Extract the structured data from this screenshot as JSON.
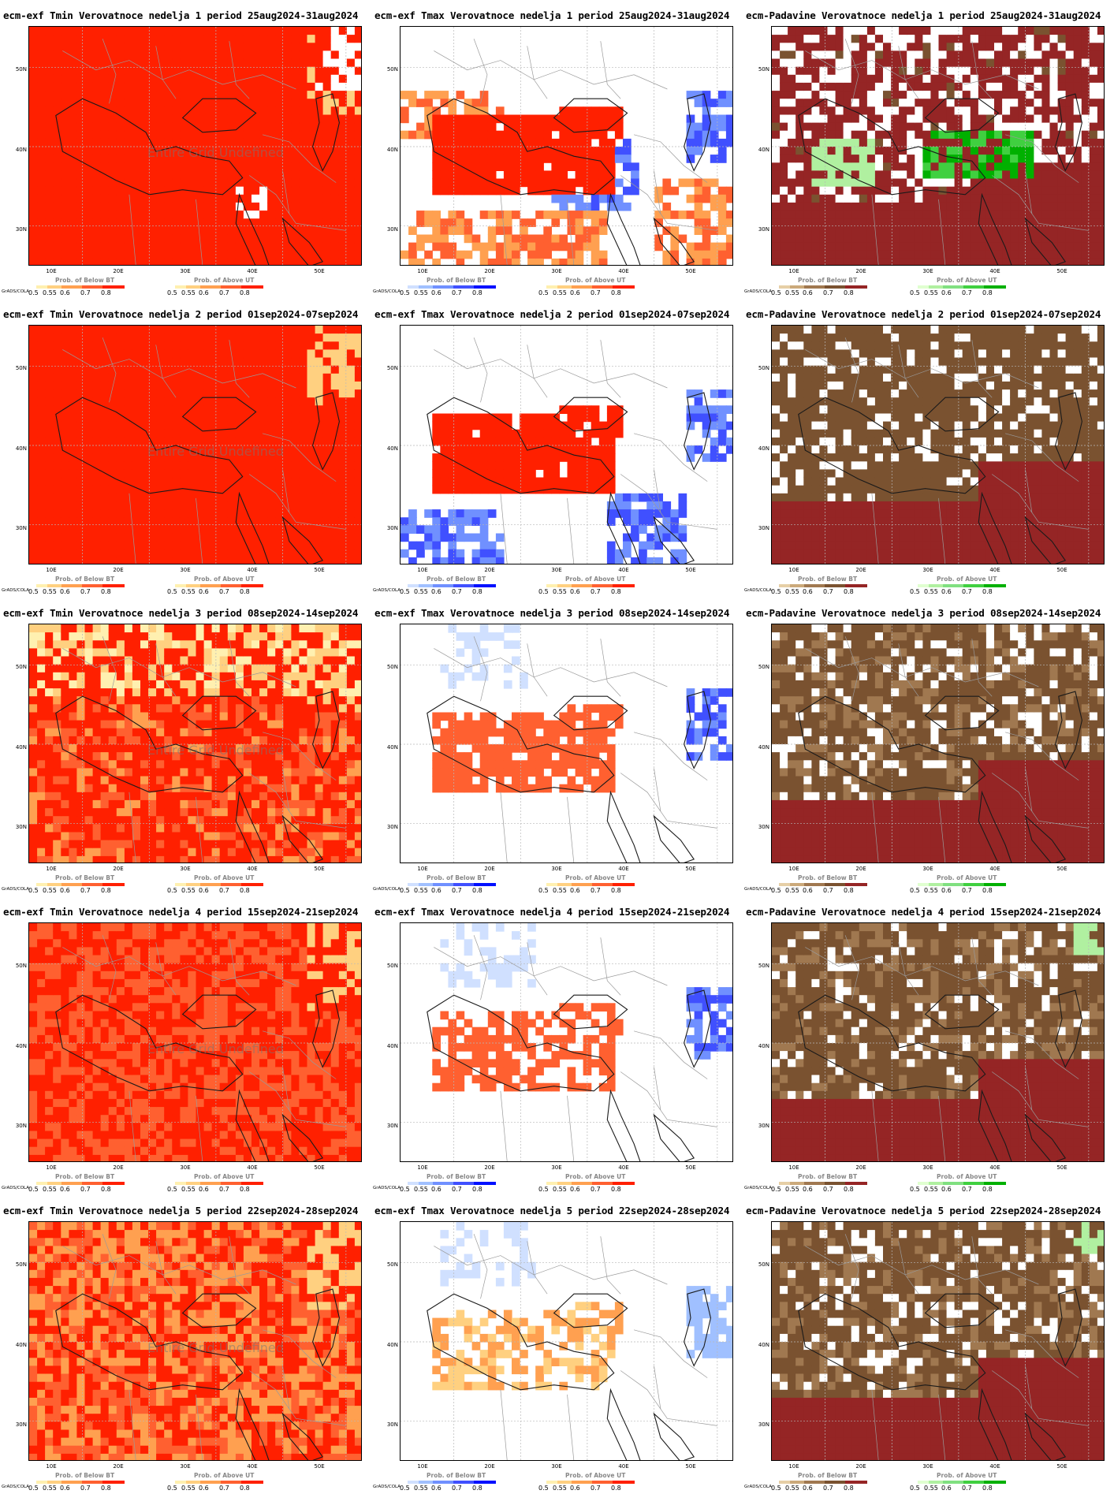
{
  "footer_credit": "GrADS/COLA",
  "overlay_text": "Entire Grid Undefined",
  "lat_labels": [
    "50N",
    "40N",
    "30N"
  ],
  "lon_labels": [
    "10E",
    "20E",
    "30E",
    "40E",
    "50E"
  ],
  "colorbars": {
    "below_label": "Prob. of Below BT",
    "above_label": "Prob. of Above UT",
    "ticks_a": [
      "0.5",
      "0.55",
      "0.6",
      "0.7",
      "0.8"
    ],
    "ticks_b": [
      "0.5",
      "0.55",
      "0.6",
      "0.7",
      "0.8"
    ],
    "palettes": {
      "temp_above": [
        "#fff0b0",
        "#ffd080",
        "#ffa050",
        "#ff6030",
        "#ff2000"
      ],
      "temp_below": [
        "#d0e0ff",
        "#a0c0ff",
        "#7090ff",
        "#4050ff",
        "#0010ff"
      ],
      "precip_below": [
        "#e6cfa6",
        "#cba97a",
        "#a07850",
        "#7a5230",
        "#952525"
      ],
      "precip_above": [
        "#e0ffd0",
        "#b0f0a0",
        "#80e080",
        "#40d040",
        "#00b000"
      ]
    }
  },
  "columns": [
    {
      "variable": "Tmin",
      "prefix": "ecm-exf Tmin Verovatnoce"
    },
    {
      "variable": "Tmax",
      "prefix": "ecm-exf Tmax Verovatnoce"
    },
    {
      "variable": "Padavine",
      "prefix": "ecm-Padavine Verovatnoce"
    }
  ],
  "panels": [
    {
      "title": "ecm-exf Tmin Verovatnoce nedelja 1 period 25aug2024-31aug2024",
      "kind": "tmin",
      "week": 1
    },
    {
      "title": "ecm-exf Tmax Verovatnoce nedelja 1 period 25aug2024-31aug2024",
      "kind": "tmax",
      "week": 1
    },
    {
      "title": "ecm-Padavine Verovatnoce nedelja 1 period 25aug2024-31aug2024",
      "kind": "precip",
      "week": 1
    },
    {
      "title": "ecm-exf Tmin Verovatnoce nedelja 2 period 01sep2024-07sep2024",
      "kind": "tmin",
      "week": 2
    },
    {
      "title": "ecm-exf Tmax Verovatnoce nedelja 2 period 01sep2024-07sep2024",
      "kind": "tmax",
      "week": 2
    },
    {
      "title": "ecm-Padavine Verovatnoce nedelja 2 period 01sep2024-07sep2024",
      "kind": "precip",
      "week": 2
    },
    {
      "title": "ecm-exf Tmin Verovatnoce nedelja 3 period 08sep2024-14sep2024",
      "kind": "tmin",
      "week": 3
    },
    {
      "title": "ecm-exf Tmax Verovatnoce nedelja 3 period 08sep2024-14sep2024",
      "kind": "tmax",
      "week": 3
    },
    {
      "title": "ecm-Padavine Verovatnoce nedelja 3 period 08sep2024-14sep2024",
      "kind": "precip",
      "week": 3
    },
    {
      "title": "ecm-exf Tmin Verovatnoce nedelja 4 period 15sep2024-21sep2024",
      "kind": "tmin",
      "week": 4
    },
    {
      "title": "ecm-exf Tmax Verovatnoce nedelja 4 period 15sep2024-21sep2024",
      "kind": "tmax",
      "week": 4
    },
    {
      "title": "ecm-Padavine Verovatnoce nedelja 4 period 15sep2024-21sep2024",
      "kind": "precip",
      "week": 4
    },
    {
      "title": "ecm-exf Tmin Verovatnoce nedelja 5 period 22sep2024-28sep2024",
      "kind": "tmin",
      "week": 5
    },
    {
      "title": "ecm-exf Tmax Verovatnoce nedelja 5 period 22sep2024-28sep2024",
      "kind": "tmax",
      "week": 5
    },
    {
      "title": "ecm-Padavine Verovatnoce nedelja 5 period 22sep2024-28sep2024",
      "kind": "precip",
      "week": 5
    }
  ]
}
